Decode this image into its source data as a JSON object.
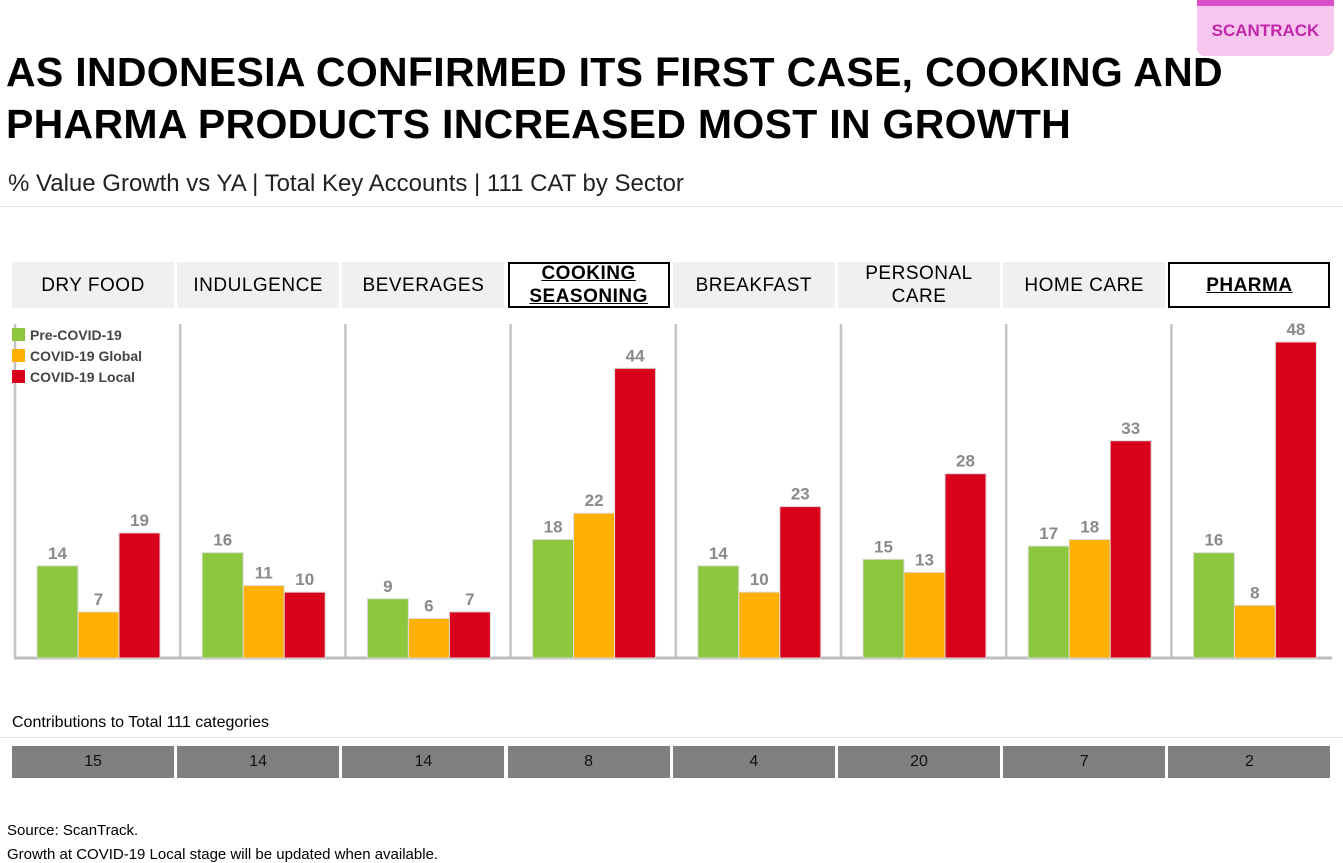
{
  "badge": "SCANTRACK",
  "title": "AS INDONESIA CONFIRMED ITS FIRST CASE, COOKING AND PHARMA PRODUCTS INCREASED MOST IN GROWTH",
  "subtitle": "% Value Growth vs YA | Total Key Accounts | 111 CAT by Sector",
  "sectors": [
    {
      "label": "DRY FOOD",
      "highlight": false
    },
    {
      "label": "INDULGENCE",
      "highlight": false
    },
    {
      "label": "BEVERAGES",
      "highlight": false
    },
    {
      "label": "COOKING SEASONING",
      "highlight": true
    },
    {
      "label": "BREAKFAST",
      "highlight": false
    },
    {
      "label": "PERSONAL CARE",
      "highlight": false
    },
    {
      "label": "HOME CARE",
      "highlight": false
    },
    {
      "label": "PHARMA",
      "highlight": true
    }
  ],
  "chart_data": {
    "type": "bar",
    "categories": [
      "DRY FOOD",
      "INDULGENCE",
      "BEVERAGES",
      "COOKING SEASONING",
      "BREAKFAST",
      "PERSONAL CARE",
      "HOME CARE",
      "PHARMA"
    ],
    "series": [
      {
        "name": "Pre-COVID-19",
        "color": "#8dc63f",
        "values": [
          14,
          16,
          9,
          18,
          14,
          15,
          17,
          16
        ]
      },
      {
        "name": "COVID-19 Global",
        "color": "#ffb000",
        "values": [
          7,
          11,
          6,
          22,
          10,
          13,
          18,
          8
        ]
      },
      {
        "name": "COVID-19 Local",
        "color": "#d9001b",
        "values": [
          19,
          10,
          7,
          44,
          23,
          28,
          33,
          48
        ]
      }
    ],
    "legend": "top-left",
    "ylim": [
      0,
      50
    ]
  },
  "contributions": {
    "label": "Contributions to Total 111 categories",
    "values": [
      "15",
      "14",
      "14",
      "8",
      "4",
      "20",
      "7",
      "2"
    ]
  },
  "footer": {
    "source": "Source: ScanTrack.",
    "note": "Growth at COVID-19 Local stage will be updated when available."
  }
}
